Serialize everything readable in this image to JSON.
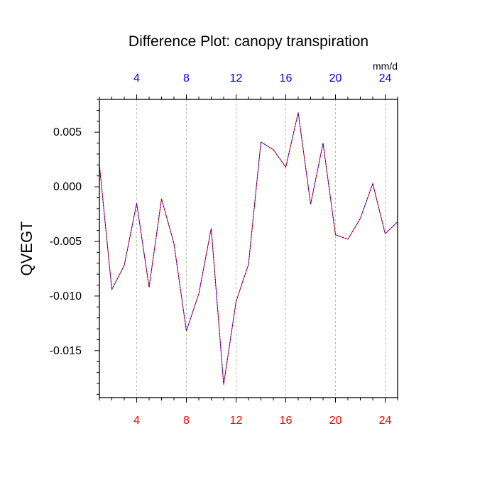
{
  "chart_data": {
    "type": "line",
    "title": "Difference Plot: canopy transpiration",
    "ylabel": "QVEGT",
    "xlabel": "",
    "units_label": "mm/d",
    "xlim": [
      1,
      25
    ],
    "ylim": [
      -0.0193,
      0.008
    ],
    "x_ticks": [
      4,
      8,
      12,
      16,
      20,
      24
    ],
    "y_ticks": [
      0.005,
      0.0,
      -0.005,
      -0.01,
      -0.015
    ],
    "y_tick_labels": [
      "0.005",
      "0.000",
      "-0.005",
      "-0.010",
      "-0.015"
    ],
    "x_minor_step": 1,
    "y_minor_step": 0.001,
    "grid": "vertical-dashed",
    "colors": {
      "bottom_ticks": "#ff0000",
      "top_ticks": "#0000ff",
      "series_a": "#ff0000",
      "series_b": "#0000ff",
      "grid": "#aaaaaa"
    },
    "series": [
      {
        "x": [
          1,
          2,
          3,
          4,
          5,
          6,
          7,
          8,
          9,
          10,
          11,
          12,
          13,
          14,
          15,
          16,
          17,
          18,
          19,
          20,
          21,
          22,
          23,
          24,
          25
        ],
        "values": [
          0.002,
          -0.0094,
          -0.0072,
          -0.0015,
          -0.0092,
          -0.0011,
          -0.0052,
          -0.0132,
          -0.0098,
          -0.0038,
          -0.0181,
          -0.0105,
          -0.0071,
          0.0041,
          0.0034,
          0.0018,
          0.0068,
          -0.0016,
          0.004,
          -0.0044,
          -0.0048,
          -0.0029,
          0.0003,
          -0.0043,
          -0.0032
        ]
      },
      {
        "x": [
          1,
          2,
          3,
          4,
          5,
          6,
          7,
          8,
          9,
          10,
          11,
          12,
          13,
          14,
          15,
          16,
          17,
          18,
          19,
          20,
          21,
          22,
          23,
          24,
          25
        ],
        "values": [
          0.002,
          -0.0094,
          -0.0072,
          -0.0015,
          -0.0092,
          -0.0011,
          -0.0052,
          -0.0132,
          -0.0098,
          -0.0038,
          -0.0181,
          -0.0105,
          -0.0071,
          0.0041,
          0.0034,
          0.0018,
          0.0068,
          -0.0016,
          0.004,
          -0.0044,
          -0.0048,
          -0.0029,
          0.0003,
          -0.0043,
          -0.0032
        ]
      }
    ]
  }
}
